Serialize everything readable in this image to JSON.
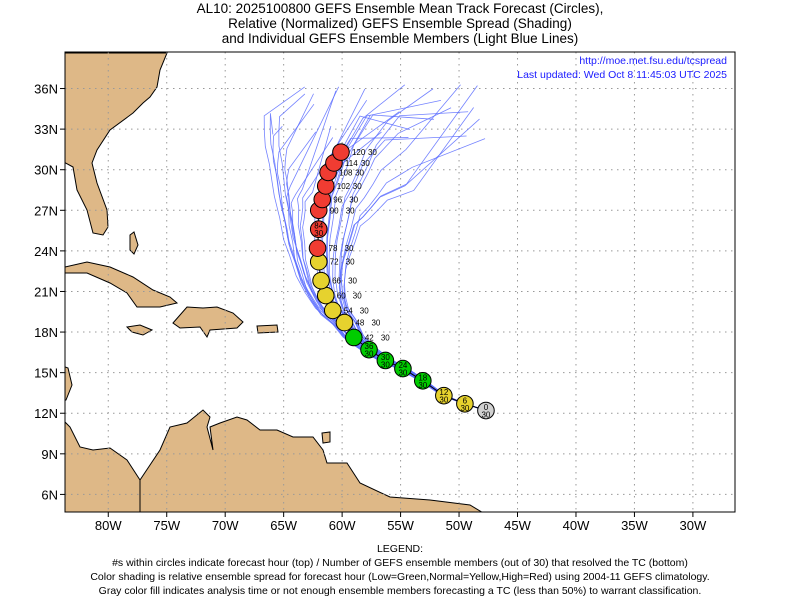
{
  "title_lines": [
    "AL10: 2025100800 GEFS Ensemble Mean Track Forecast (Circles),",
    "Relative (Normalized) GEFS Ensemble Spread (Shading)",
    "and Individual GEFS Ensemble Members (Light Blue Lines)"
  ],
  "info": {
    "url": "http://moe.met.fsu.edu/tcspread",
    "updated": "Last updated: Wed Oct 8 11:45:03 UTC 2025"
  },
  "legend": {
    "heading": "LEGEND:",
    "lines": [
      "#s within circles indicate forecast hour (top) / Number of GEFS ensemble members (out of 30) that resolved the TC (bottom)",
      "Color shading is relative ensemble spread for forecast hour (Low=Green,Normal=Yellow,High=Red) using 2004-11 GEFS climatology.",
      "Gray color fill indicates analysis time or not enough ensemble members forecasting a TC (less than 50%) to warrant classification."
    ]
  },
  "colors": {
    "low": "#00cc00",
    "normal": "#e6d22e",
    "high": "#f03c32",
    "gray": "#d0d0d0",
    "land": "#deb887",
    "members": "#5a6cff"
  },
  "chart_data": {
    "type": "scatter",
    "title": "AL10: 2025100800 GEFS Ensemble Mean Track Forecast",
    "xlim": [
      -83.7,
      -26.4
    ],
    "ylim": [
      4.7,
      38.7
    ],
    "x_ticks": [
      {
        "v": -80,
        "label": "80W"
      },
      {
        "v": -75,
        "label": "75W"
      },
      {
        "v": -70,
        "label": "70W"
      },
      {
        "v": -65,
        "label": "65W"
      },
      {
        "v": -60,
        "label": "60W"
      },
      {
        "v": -55,
        "label": "55W"
      },
      {
        "v": -50,
        "label": "50W"
      },
      {
        "v": -45,
        "label": "45W"
      },
      {
        "v": -40,
        "label": "40W"
      },
      {
        "v": -35,
        "label": "35W"
      },
      {
        "v": -30,
        "label": "30W"
      }
    ],
    "y_ticks": [
      {
        "v": 6,
        "label": "6N"
      },
      {
        "v": 9,
        "label": "9N"
      },
      {
        "v": 12,
        "label": "12N"
      },
      {
        "v": 15,
        "label": "15N"
      },
      {
        "v": 18,
        "label": "18N"
      },
      {
        "v": 21,
        "label": "21N"
      },
      {
        "v": 24,
        "label": "24N"
      },
      {
        "v": 27,
        "label": "27N"
      },
      {
        "v": 30,
        "label": "30N"
      },
      {
        "v": 33,
        "label": "33N"
      },
      {
        "v": 36,
        "label": "36N"
      }
    ],
    "grid": true,
    "track": [
      {
        "hour": "0",
        "members": "30",
        "lon": -47.7,
        "lat": 12.2,
        "spread": "gray"
      },
      {
        "hour": "6",
        "members": "30",
        "lon": -49.5,
        "lat": 12.7,
        "spread": "normal"
      },
      {
        "hour": "12",
        "members": "30",
        "lon": -51.3,
        "lat": 13.3,
        "spread": "normal"
      },
      {
        "hour": "18",
        "members": "30",
        "lon": -53.1,
        "lat": 14.4,
        "spread": "low"
      },
      {
        "hour": "24",
        "members": "30",
        "lon": -54.8,
        "lat": 15.3,
        "spread": "low"
      },
      {
        "hour": "30",
        "members": "30",
        "lon": -56.3,
        "lat": 15.9,
        "spread": "low"
      },
      {
        "hour": "36",
        "members": "30",
        "lon": -57.7,
        "lat": 16.7,
        "spread": "low"
      },
      {
        "hour": "42",
        "members": "30",
        "lon": -59.0,
        "lat": 17.6,
        "spread": "low"
      },
      {
        "hour": "48",
        "members": "30",
        "lon": -59.8,
        "lat": 18.7,
        "spread": "normal"
      },
      {
        "hour": "54",
        "members": "30",
        "lon": -60.8,
        "lat": 19.6,
        "spread": "normal"
      },
      {
        "hour": "60",
        "members": "30",
        "lon": -61.4,
        "lat": 20.7,
        "spread": "normal"
      },
      {
        "hour": "66",
        "members": "30",
        "lon": -61.8,
        "lat": 21.8,
        "spread": "normal"
      },
      {
        "hour": "72",
        "members": "30",
        "lon": -62.0,
        "lat": 23.2,
        "spread": "normal"
      },
      {
        "hour": "78",
        "members": "30",
        "lon": -62.1,
        "lat": 24.2,
        "spread": "high"
      },
      {
        "hour": "84",
        "members": "30",
        "lon": -62.0,
        "lat": 25.6,
        "spread": "high"
      },
      {
        "hour": "90",
        "members": "30",
        "lon": -62.0,
        "lat": 27.0,
        "spread": "high"
      },
      {
        "hour": "96",
        "members": "30",
        "lon": -61.7,
        "lat": 27.8,
        "spread": "high"
      },
      {
        "hour": "102",
        "members": "30",
        "lon": -61.4,
        "lat": 28.8,
        "spread": "high"
      },
      {
        "hour": "108",
        "members": "30",
        "lon": -61.2,
        "lat": 29.8,
        "spread": "high"
      },
      {
        "hour": "114",
        "members": "30",
        "lon": -60.7,
        "lat": 30.5,
        "spread": "high"
      },
      {
        "hour": "120",
        "members": "30",
        "lon": -60.1,
        "lat": 31.3,
        "spread": "high"
      }
    ]
  }
}
